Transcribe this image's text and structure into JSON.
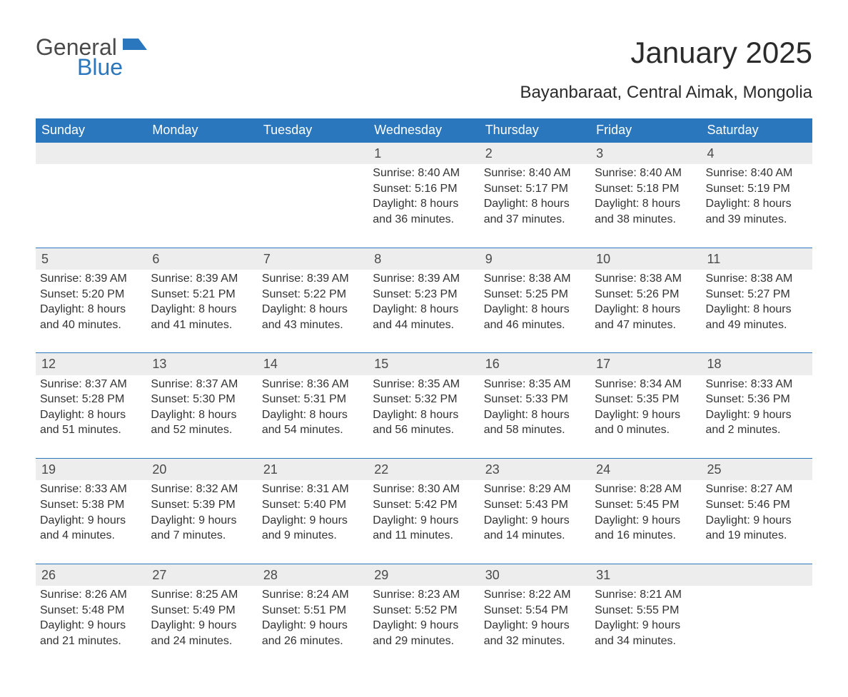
{
  "logo": {
    "general": "General",
    "blue": "Blue"
  },
  "title": "January 2025",
  "location": "Bayanbaraat, Central Aimak, Mongolia",
  "colors": {
    "header_bg": "#2a77bd",
    "header_text": "#ffffff",
    "daynum_bg": "#ededed",
    "daynum_border": "#2a77bd",
    "body_text": "#333333",
    "background": "#ffffff",
    "logo_gray": "#4a4a4a",
    "logo_blue": "#2a77bd"
  },
  "layout": {
    "columns": 7,
    "weeks": 5,
    "fontsize_header": 18,
    "fontsize_daynum": 18,
    "fontsize_detail": 16,
    "fontsize_title": 42,
    "fontsize_location": 24
  },
  "weekdays": [
    "Sunday",
    "Monday",
    "Tuesday",
    "Wednesday",
    "Thursday",
    "Friday",
    "Saturday"
  ],
  "weeks": [
    [
      null,
      null,
      null,
      {
        "day": "1",
        "sunrise": "Sunrise: 8:40 AM",
        "sunset": "Sunset: 5:16 PM",
        "daylight1": "Daylight: 8 hours",
        "daylight2": "and 36 minutes."
      },
      {
        "day": "2",
        "sunrise": "Sunrise: 8:40 AM",
        "sunset": "Sunset: 5:17 PM",
        "daylight1": "Daylight: 8 hours",
        "daylight2": "and 37 minutes."
      },
      {
        "day": "3",
        "sunrise": "Sunrise: 8:40 AM",
        "sunset": "Sunset: 5:18 PM",
        "daylight1": "Daylight: 8 hours",
        "daylight2": "and 38 minutes."
      },
      {
        "day": "4",
        "sunrise": "Sunrise: 8:40 AM",
        "sunset": "Sunset: 5:19 PM",
        "daylight1": "Daylight: 8 hours",
        "daylight2": "and 39 minutes."
      }
    ],
    [
      {
        "day": "5",
        "sunrise": "Sunrise: 8:39 AM",
        "sunset": "Sunset: 5:20 PM",
        "daylight1": "Daylight: 8 hours",
        "daylight2": "and 40 minutes."
      },
      {
        "day": "6",
        "sunrise": "Sunrise: 8:39 AM",
        "sunset": "Sunset: 5:21 PM",
        "daylight1": "Daylight: 8 hours",
        "daylight2": "and 41 minutes."
      },
      {
        "day": "7",
        "sunrise": "Sunrise: 8:39 AM",
        "sunset": "Sunset: 5:22 PM",
        "daylight1": "Daylight: 8 hours",
        "daylight2": "and 43 minutes."
      },
      {
        "day": "8",
        "sunrise": "Sunrise: 8:39 AM",
        "sunset": "Sunset: 5:23 PM",
        "daylight1": "Daylight: 8 hours",
        "daylight2": "and 44 minutes."
      },
      {
        "day": "9",
        "sunrise": "Sunrise: 8:38 AM",
        "sunset": "Sunset: 5:25 PM",
        "daylight1": "Daylight: 8 hours",
        "daylight2": "and 46 minutes."
      },
      {
        "day": "10",
        "sunrise": "Sunrise: 8:38 AM",
        "sunset": "Sunset: 5:26 PM",
        "daylight1": "Daylight: 8 hours",
        "daylight2": "and 47 minutes."
      },
      {
        "day": "11",
        "sunrise": "Sunrise: 8:38 AM",
        "sunset": "Sunset: 5:27 PM",
        "daylight1": "Daylight: 8 hours",
        "daylight2": "and 49 minutes."
      }
    ],
    [
      {
        "day": "12",
        "sunrise": "Sunrise: 8:37 AM",
        "sunset": "Sunset: 5:28 PM",
        "daylight1": "Daylight: 8 hours",
        "daylight2": "and 51 minutes."
      },
      {
        "day": "13",
        "sunrise": "Sunrise: 8:37 AM",
        "sunset": "Sunset: 5:30 PM",
        "daylight1": "Daylight: 8 hours",
        "daylight2": "and 52 minutes."
      },
      {
        "day": "14",
        "sunrise": "Sunrise: 8:36 AM",
        "sunset": "Sunset: 5:31 PM",
        "daylight1": "Daylight: 8 hours",
        "daylight2": "and 54 minutes."
      },
      {
        "day": "15",
        "sunrise": "Sunrise: 8:35 AM",
        "sunset": "Sunset: 5:32 PM",
        "daylight1": "Daylight: 8 hours",
        "daylight2": "and 56 minutes."
      },
      {
        "day": "16",
        "sunrise": "Sunrise: 8:35 AM",
        "sunset": "Sunset: 5:33 PM",
        "daylight1": "Daylight: 8 hours",
        "daylight2": "and 58 minutes."
      },
      {
        "day": "17",
        "sunrise": "Sunrise: 8:34 AM",
        "sunset": "Sunset: 5:35 PM",
        "daylight1": "Daylight: 9 hours",
        "daylight2": "and 0 minutes."
      },
      {
        "day": "18",
        "sunrise": "Sunrise: 8:33 AM",
        "sunset": "Sunset: 5:36 PM",
        "daylight1": "Daylight: 9 hours",
        "daylight2": "and 2 minutes."
      }
    ],
    [
      {
        "day": "19",
        "sunrise": "Sunrise: 8:33 AM",
        "sunset": "Sunset: 5:38 PM",
        "daylight1": "Daylight: 9 hours",
        "daylight2": "and 4 minutes."
      },
      {
        "day": "20",
        "sunrise": "Sunrise: 8:32 AM",
        "sunset": "Sunset: 5:39 PM",
        "daylight1": "Daylight: 9 hours",
        "daylight2": "and 7 minutes."
      },
      {
        "day": "21",
        "sunrise": "Sunrise: 8:31 AM",
        "sunset": "Sunset: 5:40 PM",
        "daylight1": "Daylight: 9 hours",
        "daylight2": "and 9 minutes."
      },
      {
        "day": "22",
        "sunrise": "Sunrise: 8:30 AM",
        "sunset": "Sunset: 5:42 PM",
        "daylight1": "Daylight: 9 hours",
        "daylight2": "and 11 minutes."
      },
      {
        "day": "23",
        "sunrise": "Sunrise: 8:29 AM",
        "sunset": "Sunset: 5:43 PM",
        "daylight1": "Daylight: 9 hours",
        "daylight2": "and 14 minutes."
      },
      {
        "day": "24",
        "sunrise": "Sunrise: 8:28 AM",
        "sunset": "Sunset: 5:45 PM",
        "daylight1": "Daylight: 9 hours",
        "daylight2": "and 16 minutes."
      },
      {
        "day": "25",
        "sunrise": "Sunrise: 8:27 AM",
        "sunset": "Sunset: 5:46 PM",
        "daylight1": "Daylight: 9 hours",
        "daylight2": "and 19 minutes."
      }
    ],
    [
      {
        "day": "26",
        "sunrise": "Sunrise: 8:26 AM",
        "sunset": "Sunset: 5:48 PM",
        "daylight1": "Daylight: 9 hours",
        "daylight2": "and 21 minutes."
      },
      {
        "day": "27",
        "sunrise": "Sunrise: 8:25 AM",
        "sunset": "Sunset: 5:49 PM",
        "daylight1": "Daylight: 9 hours",
        "daylight2": "and 24 minutes."
      },
      {
        "day": "28",
        "sunrise": "Sunrise: 8:24 AM",
        "sunset": "Sunset: 5:51 PM",
        "daylight1": "Daylight: 9 hours",
        "daylight2": "and 26 minutes."
      },
      {
        "day": "29",
        "sunrise": "Sunrise: 8:23 AM",
        "sunset": "Sunset: 5:52 PM",
        "daylight1": "Daylight: 9 hours",
        "daylight2": "and 29 minutes."
      },
      {
        "day": "30",
        "sunrise": "Sunrise: 8:22 AM",
        "sunset": "Sunset: 5:54 PM",
        "daylight1": "Daylight: 9 hours",
        "daylight2": "and 32 minutes."
      },
      {
        "day": "31",
        "sunrise": "Sunrise: 8:21 AM",
        "sunset": "Sunset: 5:55 PM",
        "daylight1": "Daylight: 9 hours",
        "daylight2": "and 34 minutes."
      },
      null
    ]
  ]
}
